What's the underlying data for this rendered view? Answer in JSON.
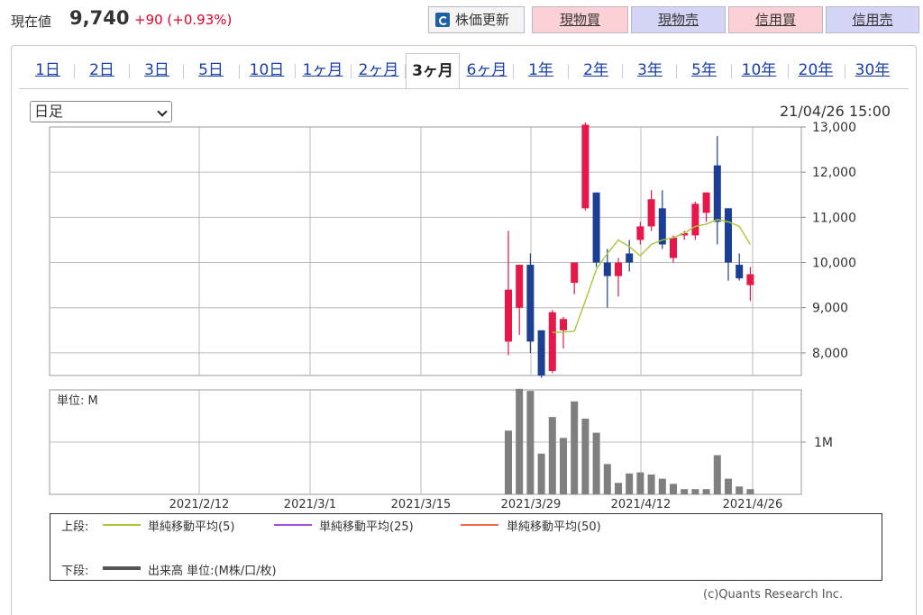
{
  "header": {
    "price_label": "現在値",
    "price": "9,740",
    "change": "+90 (+0.93%)",
    "refresh_label": "株価更新",
    "buttons": [
      "現物買",
      "現物売",
      "信用買",
      "信用売"
    ],
    "colors": {
      "buy": "#fbd1d6",
      "sell": "#d4d4f7",
      "up": "#e0002a"
    }
  },
  "tabs": [
    "1日",
    "2日",
    "3日",
    "5日",
    "10日",
    "1ヶ月",
    "2ヶ月",
    "3ヶ月",
    "6ヶ月",
    "1年",
    "2年",
    "3年",
    "5年",
    "10年",
    "20年",
    "30年"
  ],
  "active_tab": "3ヶ月",
  "interval_select": "日足",
  "timestamp": "21/04/26 15:00",
  "chart_data": {
    "type": "candlestick",
    "price_axis": {
      "min": 7500,
      "max": 13000,
      "ticks": [
        "13,000",
        "12,000",
        "11,000",
        "10,000",
        "9,000",
        "8,000"
      ],
      "tick_values": [
        13000,
        12000,
        11000,
        10000,
        9000,
        8000
      ]
    },
    "x_ticks": [
      "2021/2/12",
      "2021/3/1",
      "2021/3/15",
      "2021/3/29",
      "2021/4/12",
      "2021/4/26"
    ],
    "candles": [
      {
        "o": 8250,
        "c": 9400,
        "h": 10700,
        "l": 7950
      },
      {
        "o": 9000,
        "c": 9950,
        "h": 9950,
        "l": 8400
      },
      {
        "o": 9950,
        "c": 8250,
        "h": 10200,
        "l": 8000
      },
      {
        "o": 8500,
        "c": 7500,
        "h": 8500,
        "l": 7450
      },
      {
        "o": 7600,
        "c": 8900,
        "h": 8950,
        "l": 7550
      },
      {
        "o": 8500,
        "c": 8750,
        "h": 8800,
        "l": 8100
      },
      {
        "o": 9550,
        "c": 10000,
        "h": 10000,
        "l": 9300
      },
      {
        "o": 11200,
        "c": 13050,
        "h": 13100,
        "l": 11150
      },
      {
        "o": 11550,
        "c": 10000,
        "h": 11550,
        "l": 9900
      },
      {
        "o": 10000,
        "c": 9700,
        "h": 10300,
        "l": 9000
      },
      {
        "o": 9700,
        "c": 10000,
        "h": 10100,
        "l": 9250
      },
      {
        "o": 10200,
        "c": 10000,
        "h": 10500,
        "l": 9800
      },
      {
        "o": 10500,
        "c": 10800,
        "h": 10900,
        "l": 10400
      },
      {
        "o": 10800,
        "c": 11400,
        "h": 11600,
        "l": 10700
      },
      {
        "o": 11200,
        "c": 10400,
        "h": 11600,
        "l": 10300
      },
      {
        "o": 10100,
        "c": 10550,
        "h": 10600,
        "l": 10000
      },
      {
        "o": 10600,
        "c": 10650,
        "h": 10700,
        "l": 10500
      },
      {
        "o": 10600,
        "c": 11300,
        "h": 11350,
        "l": 10500
      },
      {
        "o": 11100,
        "c": 11550,
        "h": 11550,
        "l": 10900
      },
      {
        "o": 12150,
        "c": 10900,
        "h": 12800,
        "l": 10400
      },
      {
        "o": 11200,
        "c": 10000,
        "h": 11200,
        "l": 9600
      },
      {
        "o": 9950,
        "c": 9650,
        "h": 10200,
        "l": 9600
      },
      {
        "o": 9500,
        "c": 9740,
        "h": 9900,
        "l": 9150
      }
    ],
    "ma5": [
      null,
      null,
      null,
      null,
      8450,
      8460,
      8480,
      9150,
      9850,
      10200,
      10500,
      10350,
      10150,
      10400,
      10500,
      10550,
      10650,
      10800,
      10850,
      10950,
      10900,
      10800,
      10400
    ],
    "volume_axis": {
      "max": 2.0,
      "tick_label": "1M",
      "tick_value": 1.0,
      "unit_label": "単位: M"
    },
    "volume": [
      1.22,
      2.02,
      1.98,
      0.78,
      1.48,
      1.08,
      1.78,
      1.45,
      1.18,
      0.58,
      0.22,
      0.4,
      0.42,
      0.38,
      0.3,
      0.2,
      0.1,
      0.1,
      0.1,
      0.75,
      0.3,
      0.15,
      0.1
    ],
    "legend": {
      "upper_label": "上段:",
      "lower_label": "下段:",
      "items": [
        {
          "name": "単純移動平均(5)",
          "color": "#a8c83c"
        },
        {
          "name": "単純移動平均(25)",
          "color": "#a44ee0"
        },
        {
          "name": "単純移動平均(50)",
          "color": "#f06a4a"
        }
      ],
      "volume_item": {
        "name": "出来高 単位:(M株/口/枚)",
        "color": "#555555"
      }
    },
    "colors": {
      "up": "#e8174a",
      "down": "#1c3f94",
      "volume": "#7f7f7f"
    }
  },
  "copyright": "(c)Quants Research Inc."
}
